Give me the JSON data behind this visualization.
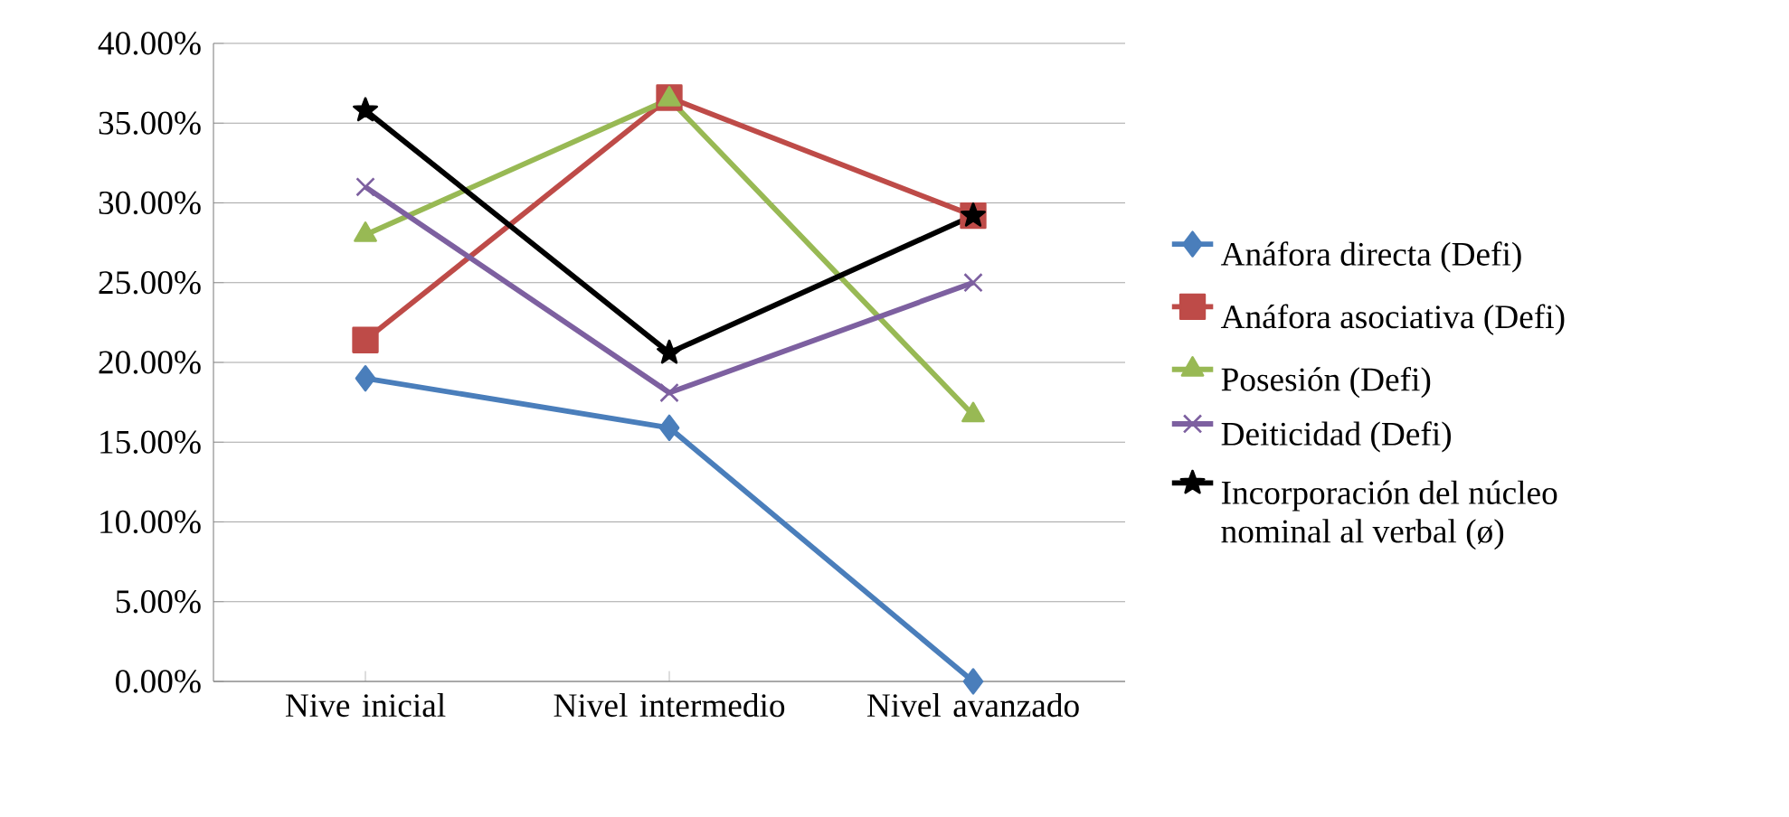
{
  "chart_data": {
    "type": "line",
    "categories": [
      "Nive inicial",
      "Nivel intermedio",
      "Nivel avanzado"
    ],
    "series": [
      {
        "name": "Anáfora directa (Defi)",
        "color": "#4a7ebb",
        "marker": "diamond",
        "values": [
          19.0,
          15.9,
          0.0
        ]
      },
      {
        "name": "Anáfora asociativa (Defi)",
        "color": "#be4b48",
        "marker": "square",
        "values": [
          21.4,
          36.6,
          29.2
        ]
      },
      {
        "name": "Posesión (Defi)",
        "color": "#98b954",
        "marker": "triangle",
        "values": [
          28.0,
          36.5,
          16.7
        ]
      },
      {
        "name": "Deiticidad (Defi)",
        "color": "#7d60a0",
        "marker": "cross",
        "values": [
          31.0,
          18.1,
          25.0
        ]
      },
      {
        "name": "Incorporación del núcleo nominal al verbal (ø)",
        "color": "#000000",
        "marker": "star",
        "values": [
          35.8,
          20.6,
          29.2
        ]
      }
    ],
    "ylim": [
      0,
      40
    ],
    "yticks": [
      {
        "value": 0,
        "label": "0.00%"
      },
      {
        "value": 5,
        "label": "5.00%"
      },
      {
        "value": 10,
        "label": "10.00%"
      },
      {
        "value": 15,
        "label": "15.00%"
      },
      {
        "value": 20,
        "label": "20.00%"
      },
      {
        "value": 25,
        "label": "25.00%"
      },
      {
        "value": 30,
        "label": "30.00%"
      },
      {
        "value": 35,
        "label": "35.00%"
      },
      {
        "value": 40,
        "label": "40.00%"
      }
    ],
    "grid": "y",
    "legend": "right",
    "line_style": "solid"
  }
}
